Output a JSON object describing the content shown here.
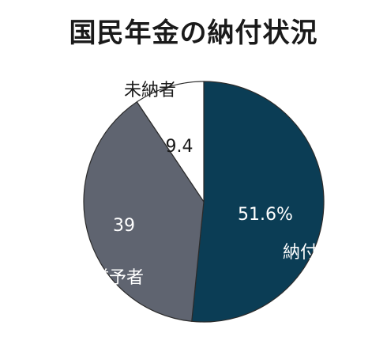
{
  "chart_data": {
    "type": "pie",
    "title": "国民年金の納付状況",
    "slices": [
      {
        "label": "納付者",
        "value": 51.6,
        "value_text": "51.6%",
        "color": "#0b3d55",
        "text_color": "#ffffff"
      },
      {
        "label": "免除・猶予者",
        "value": 39,
        "value_text": "39",
        "color": "#5f6470",
        "text_color": "#ffffff"
      },
      {
        "label": "未納者",
        "value": 9.4,
        "value_text": "9.4",
        "color": "#ffffff",
        "text_color": "#1a1a1a"
      }
    ],
    "start": "12 o'clock",
    "direction": "clockwise",
    "outline_color": "#2b2b2b"
  }
}
